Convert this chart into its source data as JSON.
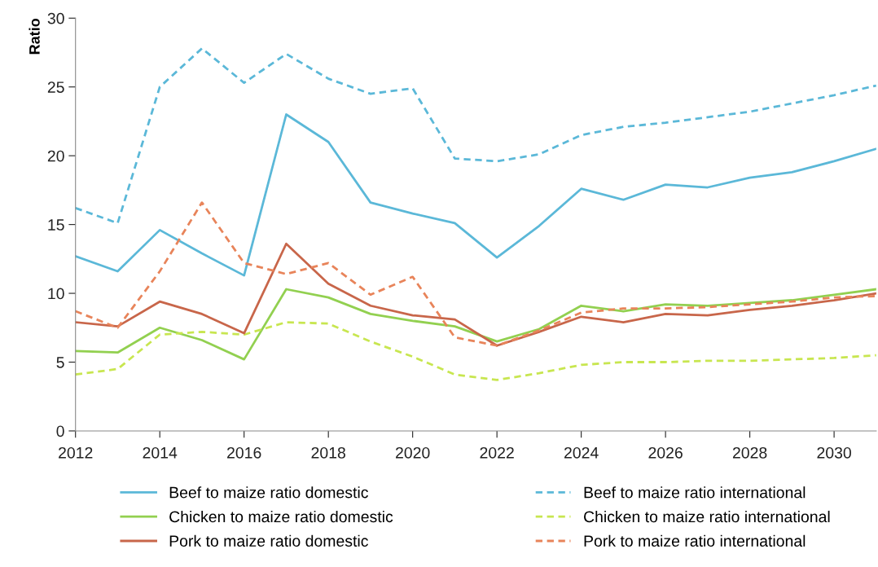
{
  "chart_data": {
    "type": "line",
    "ylabel": "Ratio",
    "x": [
      2012,
      2013,
      2014,
      2015,
      2016,
      2017,
      2018,
      2019,
      2020,
      2021,
      2022,
      2023,
      2024,
      2025,
      2026,
      2027,
      2028,
      2029,
      2030,
      2031
    ],
    "xlim": [
      2012,
      2031
    ],
    "xticks": [
      2012,
      2014,
      2016,
      2018,
      2020,
      2022,
      2024,
      2026,
      2028,
      2030
    ],
    "ylim": [
      0,
      30
    ],
    "yticks": [
      0,
      5,
      10,
      15,
      20,
      25,
      30
    ],
    "grid": false,
    "legend": "bottom",
    "marker": "none",
    "series": [
      {
        "name": "Beef to maize ratio domestic",
        "color": "#5bb8d8",
        "line_style": "solid",
        "values": [
          12.7,
          11.6,
          14.6,
          12.9,
          11.3,
          23.0,
          21.0,
          16.6,
          15.8,
          15.1,
          12.6,
          14.9,
          17.6,
          16.8,
          17.9,
          17.7,
          18.4,
          18.8,
          19.6,
          20.5
        ]
      },
      {
        "name": "Beef to maize ratio international",
        "color": "#5bb8d8",
        "line_style": "dashed",
        "values": [
          16.2,
          15.1,
          25.0,
          27.8,
          25.3,
          27.4,
          25.6,
          24.5,
          24.9,
          19.8,
          19.6,
          20.1,
          21.5,
          22.1,
          22.4,
          22.8,
          23.2,
          23.8,
          24.4,
          25.1
        ]
      },
      {
        "name": "Chicken to maize ratio domestic",
        "color": "#92d050",
        "line_style": "solid",
        "values": [
          5.8,
          5.7,
          7.5,
          6.6,
          5.2,
          10.3,
          9.7,
          8.5,
          8.0,
          7.6,
          6.5,
          7.4,
          9.1,
          8.7,
          9.2,
          9.1,
          9.3,
          9.5,
          9.9,
          10.3
        ]
      },
      {
        "name": "Chicken to maize ratio international",
        "color": "#c8e650",
        "line_style": "dashed",
        "values": [
          4.1,
          4.5,
          7.0,
          7.2,
          7.0,
          7.9,
          7.8,
          6.5,
          5.4,
          4.1,
          3.7,
          4.2,
          4.8,
          5.0,
          5.0,
          5.1,
          5.1,
          5.2,
          5.3,
          5.5
        ]
      },
      {
        "name": "Pork to maize ratio domestic",
        "color": "#c8664a",
        "line_style": "solid",
        "values": [
          7.9,
          7.6,
          9.4,
          8.5,
          7.1,
          13.6,
          10.7,
          9.1,
          8.4,
          8.1,
          6.2,
          7.2,
          8.3,
          7.9,
          8.5,
          8.4,
          8.8,
          9.1,
          9.5,
          10.0
        ]
      },
      {
        "name": "Pork to maize ratio international",
        "color": "#e8845a",
        "line_style": "dashed",
        "values": [
          8.7,
          7.5,
          11.6,
          16.6,
          12.2,
          11.4,
          12.2,
          9.9,
          11.2,
          6.8,
          6.2,
          7.3,
          8.6,
          8.9,
          8.9,
          9.0,
          9.2,
          9.4,
          9.7,
          9.8
        ]
      }
    ]
  }
}
